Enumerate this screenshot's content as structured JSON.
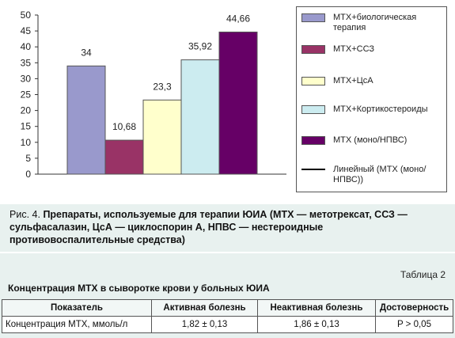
{
  "figure": {
    "caption_label": "Рис. 4.",
    "caption_text": "Препараты, используемые для терапии ЮИА (МТХ — метотрексат, ССЗ — сульфасалазин, ЦсА — циклоспорин А, НПВС — нестероидные противовоспалительные средства)"
  },
  "chart_data": {
    "type": "bar",
    "ylim": [
      0,
      50
    ],
    "yticks": [
      0,
      5,
      10,
      15,
      20,
      25,
      30,
      35,
      40,
      45,
      50
    ],
    "grid": false,
    "legend_position": "right",
    "series": [
      {
        "name": "МТХ+биологическая терапия",
        "value": 34,
        "label": "34",
        "color": "#9999cc"
      },
      {
        "name": "МТХ+ССЗ",
        "value": 10.68,
        "label": "10,68",
        "color": "#993366"
      },
      {
        "name": "МТХ+ЦсА",
        "value": 23.3,
        "label": "23,3",
        "color": "#ffffcc"
      },
      {
        "name": "МТХ+Кортикостероиды",
        "value": 35.92,
        "label": "35,92",
        "color": "#ccecf0"
      },
      {
        "name": "МТХ (моно/НПВС)",
        "value": 44.66,
        "label": "44,66",
        "color": "#660066"
      }
    ],
    "trendline": {
      "name": "Линейный (МТХ (моно/НПВС))",
      "color": "#000000"
    }
  },
  "legend": {
    "items": [
      {
        "label": "МТХ+биологическая терапия",
        "color": "#9999cc"
      },
      {
        "label": "МТХ+ССЗ",
        "color": "#993366"
      },
      {
        "label": "МТХ+ЦсА",
        "color": "#ffffcc"
      },
      {
        "label": "МТХ+Кортикостероиды",
        "color": "#ccecf0"
      },
      {
        "label": "МТХ (моно/НПВС)",
        "color": "#660066"
      },
      {
        "label": "Линейный (МТХ (моно/НПВС))",
        "color": "#000000"
      }
    ]
  },
  "table": {
    "number": "Таблица 2",
    "title": "Концентрация МТХ в сыворотке крови у больных ЮИА",
    "headers": [
      "Показатель",
      "Активная болезнь",
      "Неактивная болезнь",
      "Достоверность"
    ],
    "rows": [
      [
        "Концентрация МТХ, ммоль/л",
        "1,82 ± 0,13",
        "1,86 ± 0,13",
        "P > 0,05"
      ]
    ]
  }
}
